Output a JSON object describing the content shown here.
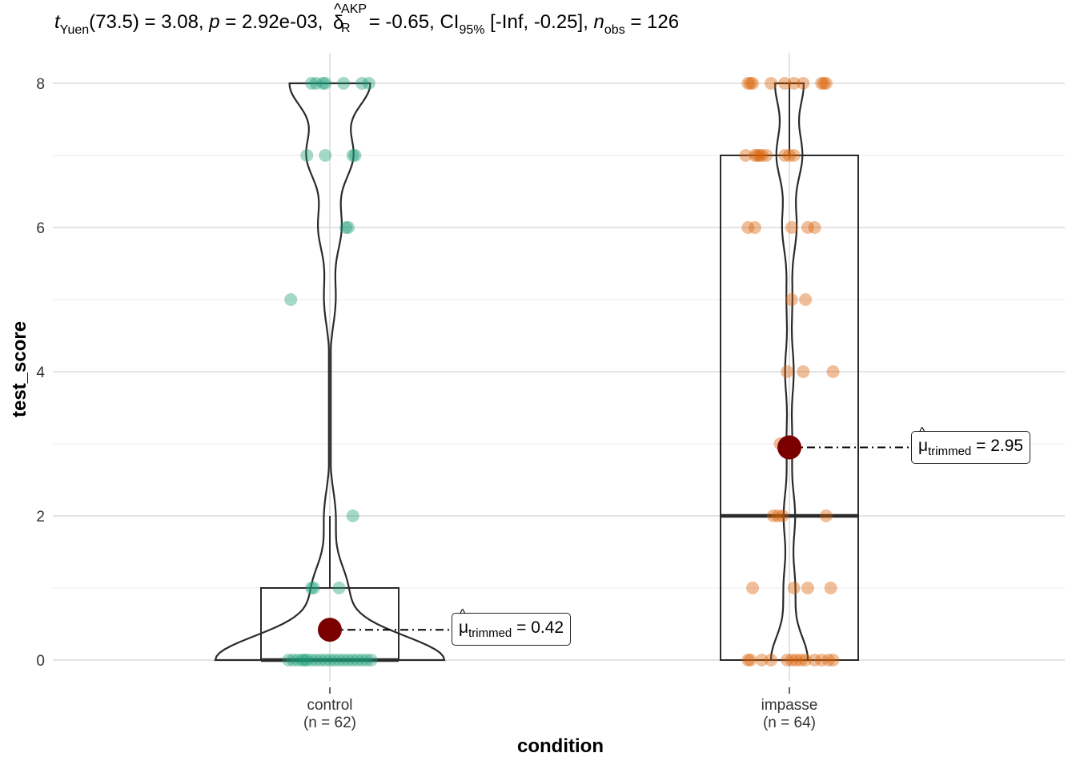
{
  "subtitle": {
    "t_symbol": "t",
    "t_sub": "Yuen",
    "df": "(73.5) = 3.08, ",
    "p_symbol": "p",
    "p_value": " = 2.92e-03, ",
    "effect_symbol": "δ",
    "effect_sup": "AKP",
    "effect_sub": "R",
    "effect_value": " = -0.65, CI",
    "ci_sub": "95%",
    "ci_value": " [-Inf, -0.25], ",
    "n_symbol": "n",
    "n_sub": "obs",
    "n_value": " = 126"
  },
  "chart_data": {
    "type": "violin-box-scatter",
    "xlabel": "condition",
    "ylabel": "test_score",
    "ylim": [
      0,
      8
    ],
    "yticks": [
      "0",
      "2",
      "4",
      "6",
      "8"
    ],
    "grid": true,
    "groups": [
      {
        "name": "control",
        "n_label": "(n = 62)",
        "color": "#1b9e77",
        "trimmed_mean": 0.42,
        "trimmed_label": "= 0.42",
        "box": {
          "q1": 0,
          "median": 0,
          "q3": 1,
          "whisker_low": 0,
          "whisker_high": 2
        },
        "points": [
          {
            "y": 8,
            "dx": -0.04
          },
          {
            "y": 8,
            "dx": -0.03
          },
          {
            "y": 8,
            "dx": -0.015
          },
          {
            "y": 8,
            "dx": -0.01
          },
          {
            "y": 8,
            "dx": 0.03
          },
          {
            "y": 8,
            "dx": 0.07
          },
          {
            "y": 8,
            "dx": 0.085
          },
          {
            "y": 7,
            "dx": -0.05
          },
          {
            "y": 7,
            "dx": -0.01
          },
          {
            "y": 7,
            "dx": 0.05
          },
          {
            "y": 7,
            "dx": 0.055
          },
          {
            "y": 6,
            "dx": 0.035
          },
          {
            "y": 6,
            "dx": 0.04
          },
          {
            "y": 5,
            "dx": -0.085
          },
          {
            "y": 2,
            "dx": 0.05
          },
          {
            "y": 1,
            "dx": -0.04
          },
          {
            "y": 1,
            "dx": -0.035
          },
          {
            "y": 1,
            "dx": 0.02
          },
          {
            "y": 0,
            "dx": -0.09
          },
          {
            "y": 0,
            "dx": -0.08
          },
          {
            "y": 0,
            "dx": -0.07
          },
          {
            "y": 0,
            "dx": -0.06
          },
          {
            "y": 0,
            "dx": -0.055
          },
          {
            "y": 0,
            "dx": -0.05
          },
          {
            "y": 0,
            "dx": -0.04
          },
          {
            "y": 0,
            "dx": -0.03
          },
          {
            "y": 0,
            "dx": -0.02
          },
          {
            "y": 0,
            "dx": -0.01
          },
          {
            "y": 0,
            "dx": 0.0
          },
          {
            "y": 0,
            "dx": 0.01
          },
          {
            "y": 0,
            "dx": 0.02
          },
          {
            "y": 0,
            "dx": 0.03
          },
          {
            "y": 0,
            "dx": 0.04
          },
          {
            "y": 0,
            "dx": 0.05
          },
          {
            "y": 0,
            "dx": 0.06
          },
          {
            "y": 0,
            "dx": 0.07
          },
          {
            "y": 0,
            "dx": 0.08
          },
          {
            "y": 0,
            "dx": 0.09
          }
        ]
      },
      {
        "name": "impasse",
        "n_label": "(n = 64)",
        "color": "#d95f02",
        "trimmed_mean": 2.95,
        "trimmed_label": "= 2.95",
        "box": {
          "q1": 0,
          "median": 2,
          "q3": 7,
          "whisker_low": 0,
          "whisker_high": 8
        },
        "points": [
          {
            "y": 8,
            "dx": -0.09
          },
          {
            "y": 8,
            "dx": -0.085
          },
          {
            "y": 8,
            "dx": -0.08
          },
          {
            "y": 8,
            "dx": -0.04
          },
          {
            "y": 8,
            "dx": -0.01
          },
          {
            "y": 8,
            "dx": 0.01
          },
          {
            "y": 8,
            "dx": 0.03
          },
          {
            "y": 8,
            "dx": 0.07
          },
          {
            "y": 8,
            "dx": 0.075
          },
          {
            "y": 8,
            "dx": 0.08
          },
          {
            "y": 7,
            "dx": -0.095
          },
          {
            "y": 7,
            "dx": -0.075
          },
          {
            "y": 7,
            "dx": -0.07
          },
          {
            "y": 7,
            "dx": -0.065
          },
          {
            "y": 7,
            "dx": -0.06
          },
          {
            "y": 7,
            "dx": -0.05
          },
          {
            "y": 7,
            "dx": -0.01
          },
          {
            "y": 7,
            "dx": 0.0
          },
          {
            "y": 7,
            "dx": 0.01
          },
          {
            "y": 6,
            "dx": -0.09
          },
          {
            "y": 6,
            "dx": -0.075
          },
          {
            "y": 6,
            "dx": 0.005
          },
          {
            "y": 6,
            "dx": 0.04
          },
          {
            "y": 6,
            "dx": 0.055
          },
          {
            "y": 5,
            "dx": 0.005
          },
          {
            "y": 5,
            "dx": 0.035
          },
          {
            "y": 4,
            "dx": -0.005
          },
          {
            "y": 4,
            "dx": 0.03
          },
          {
            "y": 4,
            "dx": 0.095
          },
          {
            "y": 3,
            "dx": -0.02
          },
          {
            "y": 3,
            "dx": 0.0
          },
          {
            "y": 2,
            "dx": -0.035
          },
          {
            "y": 2,
            "dx": -0.025
          },
          {
            "y": 2,
            "dx": -0.015
          },
          {
            "y": 2,
            "dx": 0.08
          },
          {
            "y": 1,
            "dx": -0.08
          },
          {
            "y": 1,
            "dx": 0.01
          },
          {
            "y": 1,
            "dx": 0.04
          },
          {
            "y": 1,
            "dx": 0.09
          },
          {
            "y": 0,
            "dx": -0.09
          },
          {
            "y": 0,
            "dx": -0.085
          },
          {
            "y": 0,
            "dx": -0.06
          },
          {
            "y": 0,
            "dx": -0.04
          },
          {
            "y": 0,
            "dx": -0.005
          },
          {
            "y": 0,
            "dx": 0.005
          },
          {
            "y": 0,
            "dx": 0.015
          },
          {
            "y": 0,
            "dx": 0.025
          },
          {
            "y": 0,
            "dx": 0.035
          },
          {
            "y": 0,
            "dx": 0.055
          },
          {
            "y": 0,
            "dx": 0.07
          },
          {
            "y": 0,
            "dx": 0.085
          },
          {
            "y": 0,
            "dx": 0.095
          }
        ]
      }
    ],
    "trimmed_symbol": "μ",
    "trimmed_sub": "trimmed",
    "mean_color": "#7a0000"
  }
}
